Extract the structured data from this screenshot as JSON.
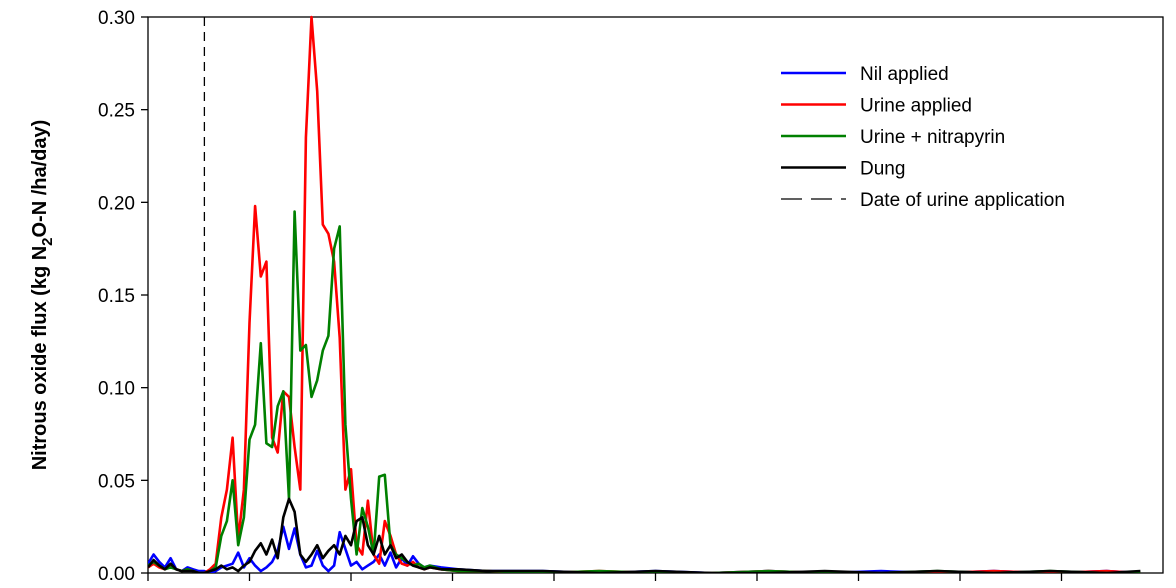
{
  "chart_data": {
    "type": "line",
    "title": "",
    "xlabel": "",
    "ylabel_parts": [
      "Nitrous oxide flux (kg N",
      "2",
      "O-N /ha/day)"
    ],
    "ylim": [
      0,
      0.3
    ],
    "xlim": [
      0,
      180
    ],
    "yticks": [
      "0.00",
      "0.05",
      "0.10",
      "0.15",
      "0.20",
      "0.25",
      "0.30"
    ],
    "ytick_values": [
      0,
      0.05,
      0.1,
      0.15,
      0.2,
      0.25,
      0.3
    ],
    "xtick_values": [
      0,
      18,
      36,
      54,
      72,
      90,
      108,
      126,
      144,
      162
    ],
    "urine_application_x": 10,
    "grid": false,
    "legend_position": "top-right",
    "legend": [
      {
        "label": "Nil applied",
        "color": "#0000ff",
        "style": "solid"
      },
      {
        "label": "Urine applied",
        "color": "#ff0000",
        "style": "solid"
      },
      {
        "label": "Urine + nitrapyrin",
        "color": "#008000",
        "style": "solid"
      },
      {
        "label": "Dung",
        "color": "#000000",
        "style": "solid"
      },
      {
        "label": "Date of urine application",
        "color": "#000000",
        "style": "dashed"
      }
    ],
    "series": [
      {
        "name": "Nil applied",
        "color": "#0000ff",
        "x": [
          0,
          1,
          2,
          3,
          4,
          5,
          6,
          7,
          8,
          9,
          10,
          11,
          12,
          13,
          14,
          15,
          16,
          17,
          18,
          19,
          20,
          21,
          22,
          23,
          24,
          25,
          26,
          27,
          28,
          29,
          30,
          31,
          32,
          33,
          34,
          35,
          36,
          37,
          38,
          39,
          40,
          41,
          42,
          43,
          44,
          45,
          46,
          47,
          48,
          49,
          50,
          52,
          55,
          60,
          70,
          80,
          90,
          100,
          110,
          120,
          130,
          140,
          150,
          160,
          170,
          176
        ],
        "y": [
          0.005,
          0.01,
          0.006,
          0.003,
          0.008,
          0.002,
          0.001,
          0.003,
          0.002,
          0.001,
          0.001,
          0.0,
          0.001,
          0.003,
          0.004,
          0.005,
          0.011,
          0.003,
          0.008,
          0.004,
          0.001,
          0.003,
          0.006,
          0.012,
          0.025,
          0.013,
          0.024,
          0.01,
          0.003,
          0.004,
          0.012,
          0.004,
          0.001,
          0.004,
          0.022,
          0.013,
          0.004,
          0.006,
          0.002,
          0.004,
          0.006,
          0.01,
          0.004,
          0.011,
          0.003,
          0.008,
          0.004,
          0.009,
          0.005,
          0.003,
          0.004,
          0.003,
          0.002,
          0.001,
          0.001,
          0.0,
          0.001,
          0.0,
          0.001,
          0.0,
          0.001,
          0.0,
          0.001,
          0.0,
          0.001,
          0.0
        ]
      },
      {
        "name": "Urine applied",
        "color": "#ff0000",
        "x": [
          0,
          1,
          2,
          3,
          4,
          5,
          6,
          7,
          8,
          9,
          10,
          11,
          12,
          13,
          14,
          15,
          16,
          17,
          18,
          19,
          20,
          21,
          22,
          23,
          24,
          25,
          26,
          27,
          28,
          29,
          30,
          31,
          32,
          33,
          34,
          35,
          36,
          37,
          38,
          39,
          40,
          41,
          42,
          43,
          44,
          45,
          46,
          47,
          48,
          49,
          50,
          52,
          55,
          60,
          70,
          80,
          90,
          100,
          110,
          120,
          130,
          140,
          150,
          160,
          170,
          176
        ],
        "y": [
          0.003,
          0.005,
          0.003,
          0.002,
          0.004,
          0.002,
          0.001,
          0.002,
          0.001,
          0.0,
          0.0,
          0.002,
          0.005,
          0.03,
          0.045,
          0.073,
          0.018,
          0.045,
          0.135,
          0.198,
          0.16,
          0.168,
          0.073,
          0.065,
          0.098,
          0.095,
          0.068,
          0.045,
          0.235,
          0.3,
          0.26,
          0.188,
          0.183,
          0.168,
          0.127,
          0.045,
          0.056,
          0.015,
          0.01,
          0.039,
          0.01,
          0.005,
          0.028,
          0.02,
          0.01,
          0.005,
          0.004,
          0.006,
          0.003,
          0.002,
          0.003,
          0.002,
          0.001,
          0.001,
          0.0,
          0.001,
          0.0,
          0.0,
          0.001,
          0.0,
          0.0,
          0.0,
          0.001,
          0.0,
          0.001,
          0.0
        ]
      },
      {
        "name": "Urine + nitrapyrin",
        "color": "#008000",
        "x": [
          0,
          1,
          2,
          3,
          4,
          5,
          6,
          7,
          8,
          9,
          10,
          11,
          12,
          13,
          14,
          15,
          16,
          17,
          18,
          19,
          20,
          21,
          22,
          23,
          24,
          25,
          26,
          27,
          28,
          29,
          30,
          31,
          32,
          33,
          34,
          35,
          36,
          37,
          38,
          39,
          40,
          41,
          42,
          43,
          44,
          45,
          46,
          47,
          48,
          49,
          50,
          52,
          55,
          60,
          70,
          80,
          90,
          100,
          110,
          120,
          130,
          140,
          150,
          160,
          170,
          176
        ],
        "y": [
          0.004,
          0.006,
          0.004,
          0.002,
          0.003,
          0.002,
          0.001,
          0.002,
          0.001,
          0.0,
          0.0,
          0.001,
          0.003,
          0.02,
          0.028,
          0.05,
          0.015,
          0.03,
          0.072,
          0.08,
          0.124,
          0.07,
          0.068,
          0.09,
          0.098,
          0.04,
          0.195,
          0.12,
          0.123,
          0.095,
          0.104,
          0.12,
          0.128,
          0.175,
          0.187,
          0.08,
          0.04,
          0.01,
          0.035,
          0.025,
          0.01,
          0.052,
          0.053,
          0.015,
          0.01,
          0.008,
          0.006,
          0.004,
          0.005,
          0.003,
          0.004,
          0.002,
          0.001,
          0.001,
          0.0,
          0.001,
          0.0,
          0.0,
          0.001,
          0.0,
          0.0,
          0.001,
          0.0,
          0.001,
          0.0,
          0.0
        ]
      },
      {
        "name": "Dung",
        "color": "#000000",
        "x": [
          0,
          1,
          2,
          3,
          4,
          5,
          6,
          7,
          8,
          9,
          10,
          11,
          12,
          13,
          14,
          15,
          16,
          17,
          18,
          19,
          20,
          21,
          22,
          23,
          24,
          25,
          26,
          27,
          28,
          29,
          30,
          31,
          32,
          33,
          34,
          35,
          36,
          37,
          38,
          39,
          40,
          41,
          42,
          43,
          44,
          45,
          46,
          47,
          48,
          49,
          50,
          52,
          55,
          60,
          70,
          80,
          90,
          100,
          110,
          120,
          130,
          140,
          150,
          160,
          170,
          176
        ],
        "y": [
          0.003,
          0.007,
          0.004,
          0.002,
          0.005,
          0.002,
          0.001,
          0.001,
          0.001,
          0.0,
          0.0,
          0.001,
          0.002,
          0.004,
          0.002,
          0.003,
          0.001,
          0.004,
          0.006,
          0.012,
          0.016,
          0.01,
          0.018,
          0.008,
          0.03,
          0.04,
          0.033,
          0.01,
          0.006,
          0.01,
          0.015,
          0.008,
          0.012,
          0.015,
          0.01,
          0.02,
          0.015,
          0.028,
          0.03,
          0.015,
          0.01,
          0.02,
          0.01,
          0.015,
          0.008,
          0.01,
          0.006,
          0.004,
          0.003,
          0.002,
          0.003,
          0.002,
          0.002,
          0.001,
          0.001,
          0.0,
          0.001,
          0.0,
          0.0,
          0.001,
          0.0,
          0.001,
          0.0,
          0.001,
          0.0,
          0.001
        ]
      }
    ]
  }
}
